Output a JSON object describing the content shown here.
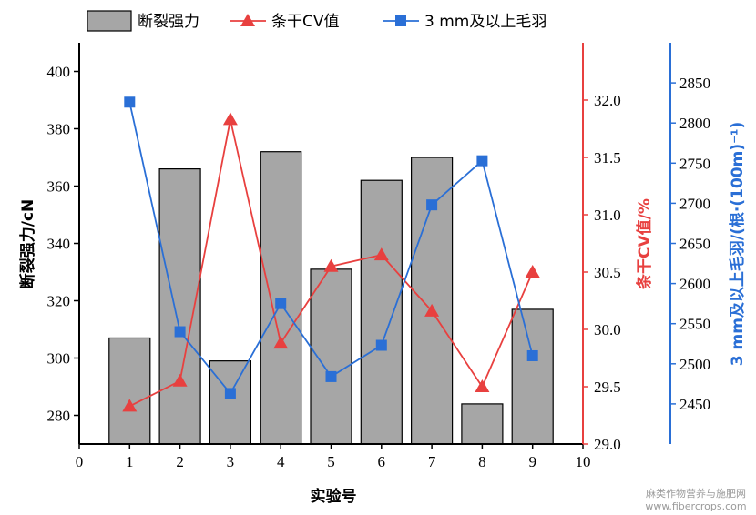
{
  "chart_data": {
    "type": "bar+line",
    "x": [
      1,
      2,
      3,
      4,
      5,
      6,
      7,
      8,
      9
    ],
    "xlabel": "实验号",
    "x_ticks": [
      "0",
      "1",
      "2",
      "3",
      "4",
      "5",
      "6",
      "7",
      "8",
      "9",
      "10"
    ],
    "xlim": [
      0,
      10
    ],
    "series": [
      {
        "name": "断裂强力",
        "kind": "bar",
        "axis": "left",
        "color": "#a6a6a6",
        "values": [
          307,
          366,
          299,
          372,
          331,
          362,
          370,
          284,
          317
        ]
      },
      {
        "name": "条干CV值",
        "kind": "line",
        "marker": "triangle",
        "axis": "right1",
        "color": "#e8403f",
        "values": [
          29.33,
          29.55,
          31.83,
          29.88,
          30.55,
          30.65,
          30.16,
          29.5,
          30.5
        ]
      },
      {
        "name": "3 mm及以上毛羽",
        "kind": "line",
        "marker": "square",
        "axis": "right2",
        "color": "#2a6fd6",
        "values": [
          2826,
          2540,
          2463,
          2575,
          2484,
          2523,
          2698,
          2753,
          2510
        ]
      }
    ],
    "axes": {
      "left": {
        "label": "断裂强力/cN",
        "ylim": [
          270,
          410
        ],
        "ticks": [
          "280",
          "300",
          "320",
          "340",
          "360",
          "380",
          "400"
        ],
        "color": "#000000"
      },
      "right1": {
        "label": "条干CV值/%",
        "ylim": [
          29.0,
          32.5
        ],
        "ticks": [
          "29.0",
          "29.5",
          "30.0",
          "30.5",
          "31.0",
          "31.5",
          "32.0"
        ],
        "color": "#e8403f"
      },
      "right2": {
        "label": "3 mm及以上毛羽/(根·(100m)⁻¹)",
        "ylim": [
          2400,
          2900
        ],
        "ticks": [
          "2450",
          "2500",
          "2550",
          "2600",
          "2650",
          "2700",
          "2750",
          "2800",
          "2850"
        ],
        "color": "#2a6fd6"
      }
    },
    "legend": {
      "placement": "top"
    }
  },
  "watermark": {
    "line1": "麻类作物营养与施肥网",
    "line2": "www.fibercrops.com"
  }
}
